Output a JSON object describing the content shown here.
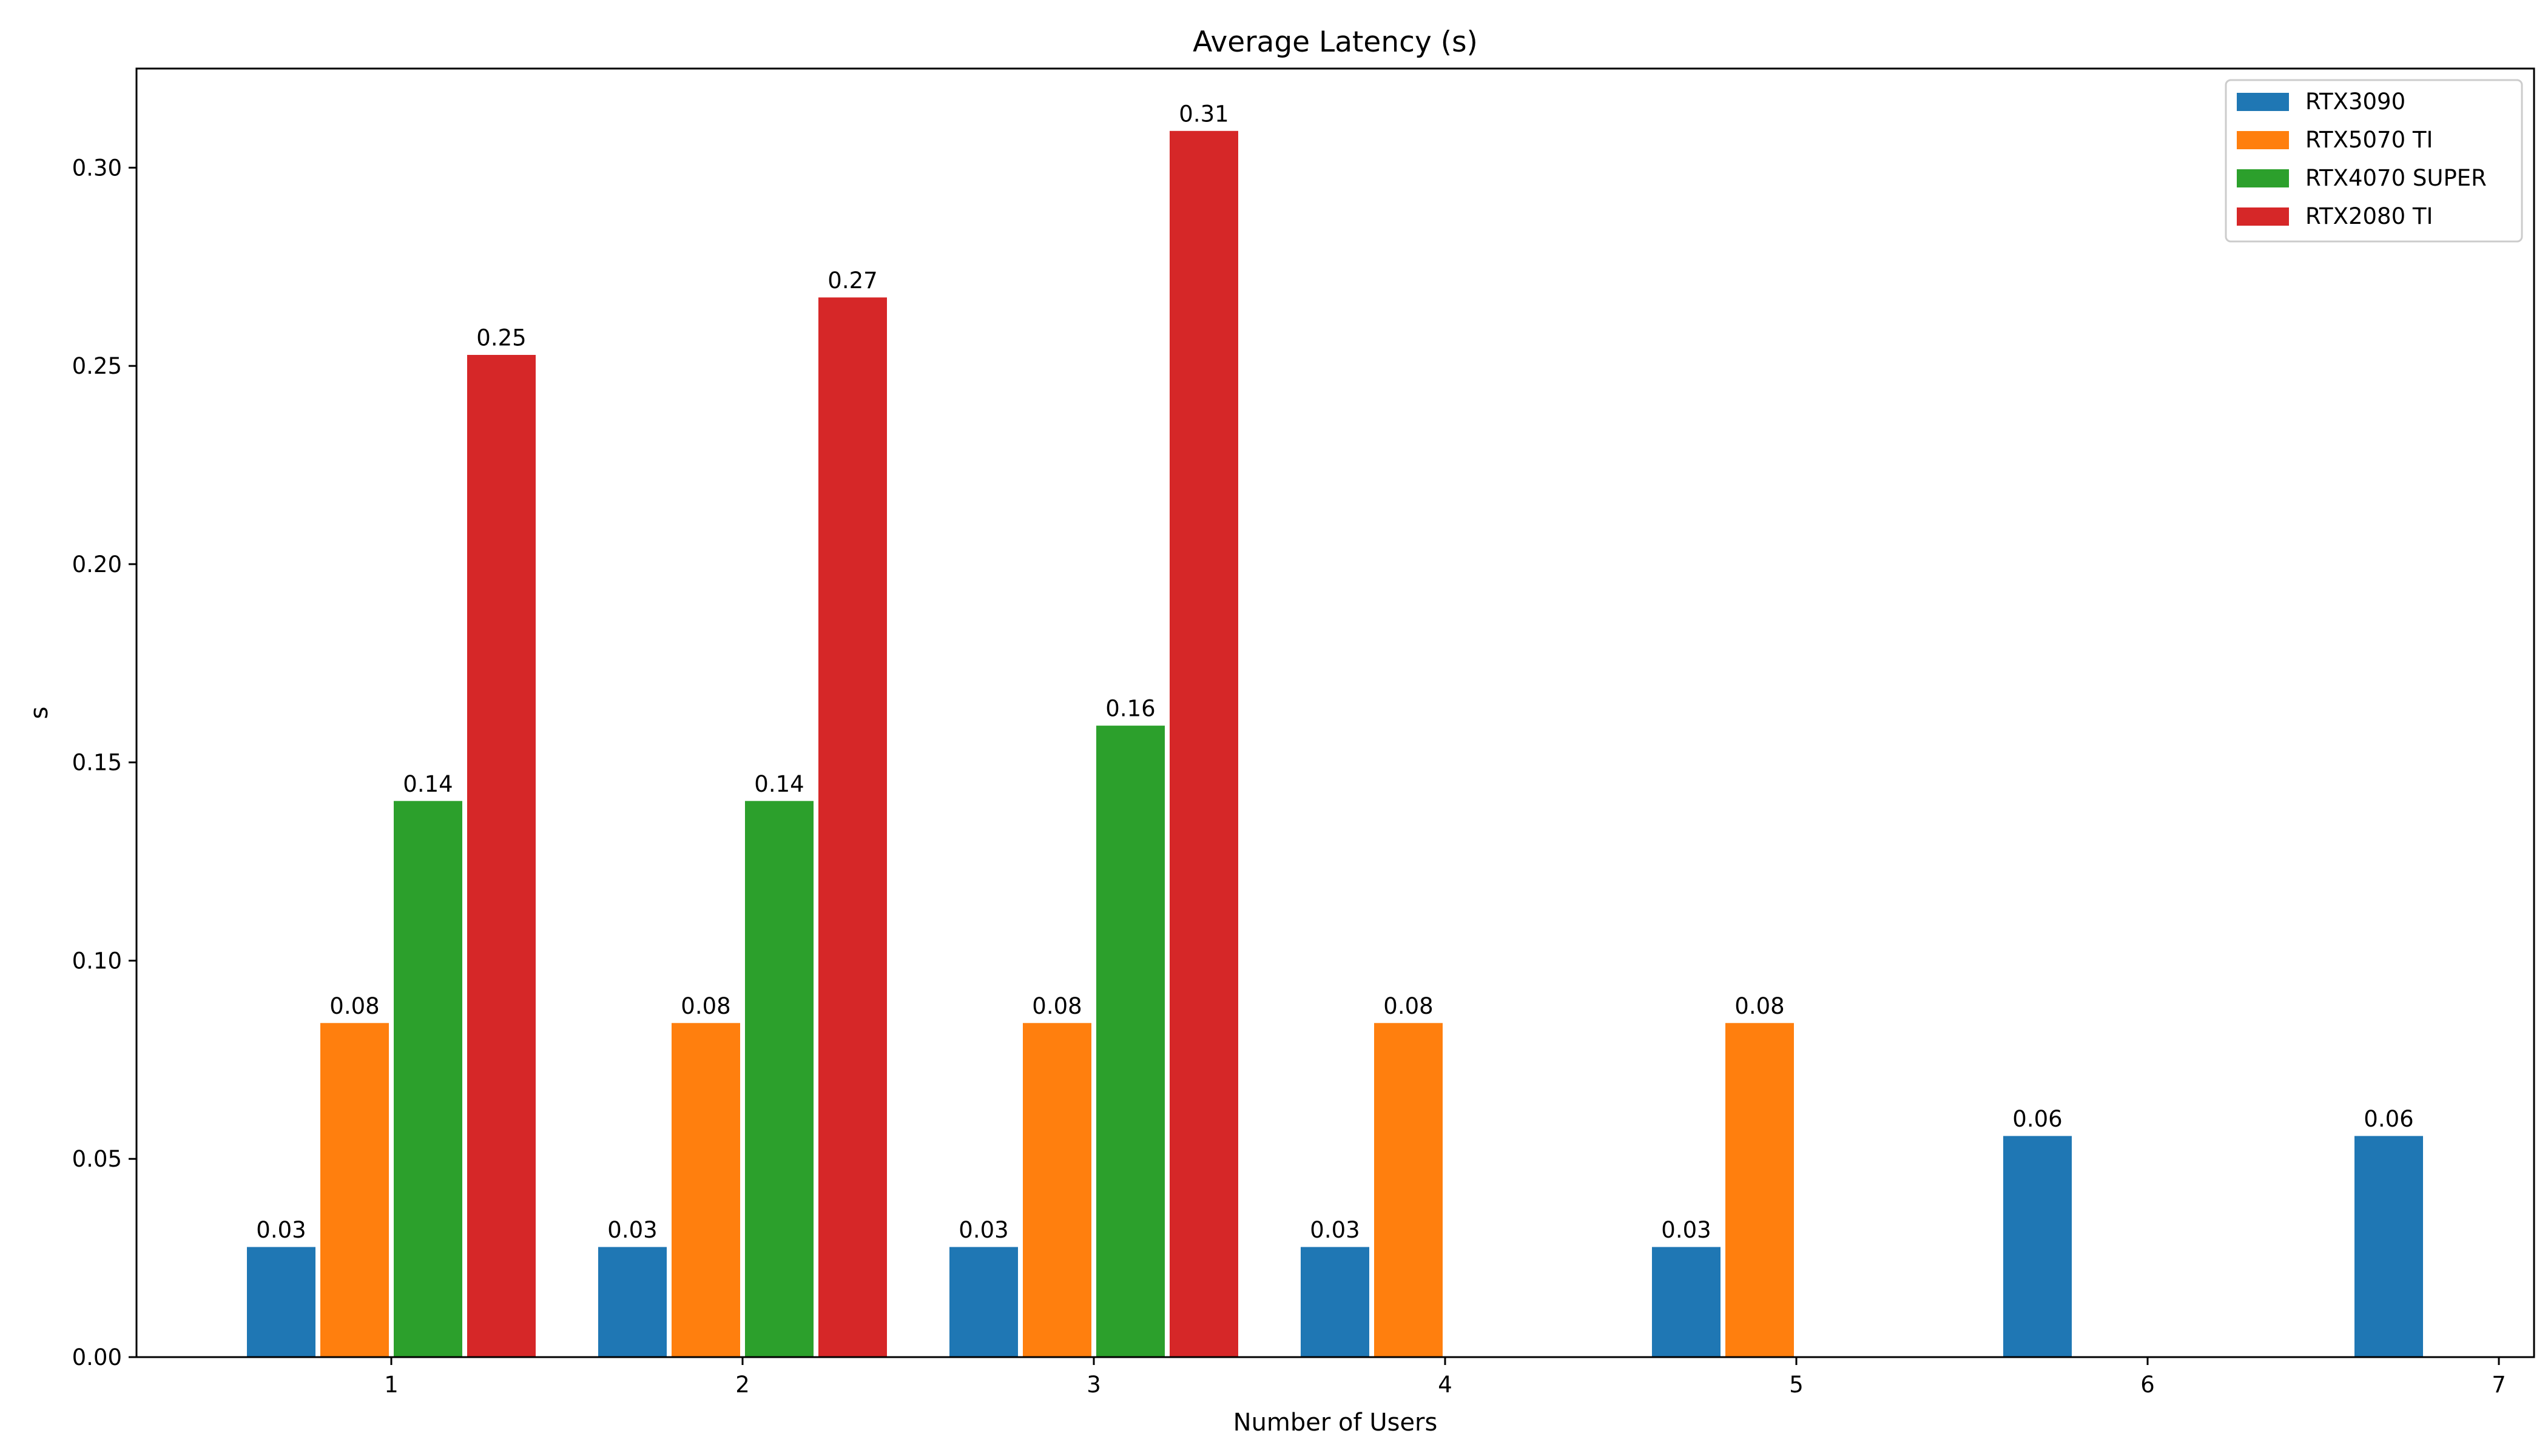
{
  "chart_data": {
    "type": "bar",
    "title": "Average Latency (s)",
    "xlabel": "Number of Users",
    "ylabel": "s",
    "categories": [
      "1",
      "2",
      "3",
      "4",
      "5",
      "6",
      "7"
    ],
    "ylim": [
      0,
      0.325
    ],
    "yticks": [
      0.0,
      0.05,
      0.1,
      0.15,
      0.2,
      0.25,
      0.3
    ],
    "ytick_labels": [
      "0.00",
      "0.05",
      "0.10",
      "0.15",
      "0.20",
      "0.25",
      "0.30"
    ],
    "grid": false,
    "legend_position": "top-right",
    "series": [
      {
        "name": "RTX3090",
        "color": "#1f77b4",
        "values": [
          0.028,
          0.028,
          0.028,
          0.028,
          0.028,
          0.056,
          0.056
        ],
        "labels": [
          "0.03",
          "0.03",
          "0.03",
          "0.03",
          "0.03",
          "0.06",
          "0.06"
        ]
      },
      {
        "name": "RTX5070 TI",
        "color": "#ff7f0e",
        "values": [
          0.0845,
          0.0845,
          0.0845,
          0.0845,
          0.0845,
          null,
          null
        ],
        "labels": [
          "0.08",
          "0.08",
          "0.08",
          "0.08",
          "0.08",
          null,
          null
        ]
      },
      {
        "name": "RTX4070 SUPER",
        "color": "#2ca02c",
        "values": [
          0.1405,
          0.1405,
          0.1595,
          null,
          null,
          null,
          null
        ],
        "labels": [
          "0.14",
          "0.14",
          "0.16",
          null,
          null,
          null,
          null
        ]
      },
      {
        "name": "RTX2080 TI",
        "color": "#d62728",
        "values": [
          0.253,
          0.2675,
          0.3095,
          null,
          null,
          null,
          null
        ],
        "labels": [
          "0.25",
          "0.27",
          "0.31",
          null,
          null,
          null,
          null
        ]
      }
    ]
  }
}
